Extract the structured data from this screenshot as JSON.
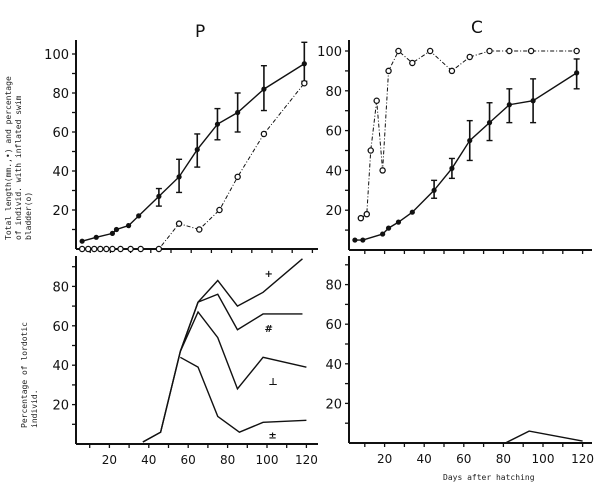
{
  "chart_data": [
    {
      "type": "scatter",
      "title": "P",
      "ylabel_lines": [
        "Total length(mm.,•) and percentage",
        "of individ. with inflated swim",
        "bladder(o)"
      ],
      "xlim": [
        3,
        125
      ],
      "ylim": [
        0,
        105
      ],
      "y_ticks": [
        "20",
        "40",
        "60",
        "80",
        "100"
      ],
      "series": [
        {
          "marker": "filled",
          "line": "solid",
          "x": [
            6,
            13,
            21,
            23,
            29,
            34,
            44,
            54,
            63,
            73,
            83,
            96,
            116
          ],
          "y": [
            4,
            6,
            8,
            10,
            12,
            17,
            27,
            37,
            51,
            64,
            70,
            82,
            95
          ],
          "err_low": [
            null,
            null,
            null,
            null,
            null,
            null,
            22,
            29,
            42,
            56,
            60,
            71,
            86
          ],
          "err_high": [
            null,
            null,
            null,
            null,
            null,
            null,
            31,
            46,
            59,
            72,
            80,
            94,
            106
          ]
        },
        {
          "marker": "open",
          "line": "dashed",
          "x": [
            6,
            9,
            12,
            15,
            18,
            21,
            25,
            30,
            35,
            44,
            54,
            64,
            74,
            83,
            96,
            116
          ],
          "y": [
            0,
            0,
            0,
            0,
            0,
            0,
            0,
            0,
            0,
            0,
            13,
            10,
            20,
            37,
            59,
            85
          ]
        }
      ]
    },
    {
      "type": "scatter",
      "title": "C",
      "xlim": [
        2,
        125
      ],
      "ylim": [
        0,
        105
      ],
      "y_ticks": [
        "20",
        "40",
        "60",
        "80",
        "100"
      ],
      "series": [
        {
          "marker": "filled",
          "line": "solid",
          "x": [
            5,
            9,
            19,
            22,
            27,
            34,
            45,
            54,
            63,
            73,
            83,
            95,
            117
          ],
          "y": [
            5,
            5,
            8,
            11,
            14,
            19,
            30,
            41,
            55,
            64,
            73,
            75,
            89
          ],
          "err_low": [
            null,
            null,
            null,
            null,
            null,
            null,
            26,
            36,
            45,
            55,
            64,
            64,
            81
          ],
          "err_high": [
            null,
            null,
            null,
            null,
            null,
            null,
            35,
            46,
            65,
            74,
            81,
            86,
            96
          ]
        },
        {
          "marker": "open",
          "line": "dashed",
          "x": [
            8,
            11,
            13,
            16,
            19,
            22,
            27,
            34,
            43,
            54,
            63,
            73,
            83,
            94,
            117
          ],
          "y": [
            16,
            18,
            50,
            75,
            40,
            90,
            100,
            94,
            100,
            90,
            97,
            100,
            100,
            100,
            100
          ]
        }
      ]
    },
    {
      "type": "line",
      "ylabel_lines": [
        "Percentage of lordotic",
        "individ."
      ],
      "xlim": [
        3,
        125
      ],
      "ylim": [
        0,
        95
      ],
      "x_ticks": [
        "20",
        "40",
        "60",
        "80",
        "100",
        "120"
      ],
      "y_ticks": [
        "20",
        "40",
        "60",
        "80"
      ],
      "series": [
        {
          "name": "+",
          "x": [
            37,
            46,
            56,
            65,
            75,
            85,
            98,
            118
          ],
          "y": [
            1,
            6,
            47,
            72,
            83,
            70,
            77,
            94
          ]
        },
        {
          "name": "#",
          "x": [
            37,
            46,
            56,
            65,
            75,
            85,
            98,
            118
          ],
          "y": [
            1,
            6,
            47,
            72,
            76,
            58,
            66,
            66
          ]
        },
        {
          "name": "⊥",
          "x": [
            56,
            65,
            75,
            85,
            98,
            120
          ],
          "y": [
            47,
            67,
            54,
            28,
            44,
            39
          ]
        },
        {
          "name": "±",
          "x": [
            56,
            65,
            75,
            86,
            98,
            120
          ],
          "y": [
            44,
            39,
            14,
            6,
            11,
            12
          ]
        }
      ]
    },
    {
      "type": "line",
      "xlabel": "Days after hatching",
      "xlim": [
        2,
        125
      ],
      "ylim": [
        0,
        95
      ],
      "x_ticks": [
        "20",
        "40",
        "60",
        "80",
        "100",
        "120"
      ],
      "y_ticks": [
        "20",
        "40",
        "60",
        "80"
      ],
      "series": [
        {
          "x": [
            81,
            93,
            120
          ],
          "y": [
            0,
            6,
            1
          ]
        }
      ]
    }
  ],
  "colors": {
    "ink": "#111111",
    "background": "#ffffff"
  }
}
